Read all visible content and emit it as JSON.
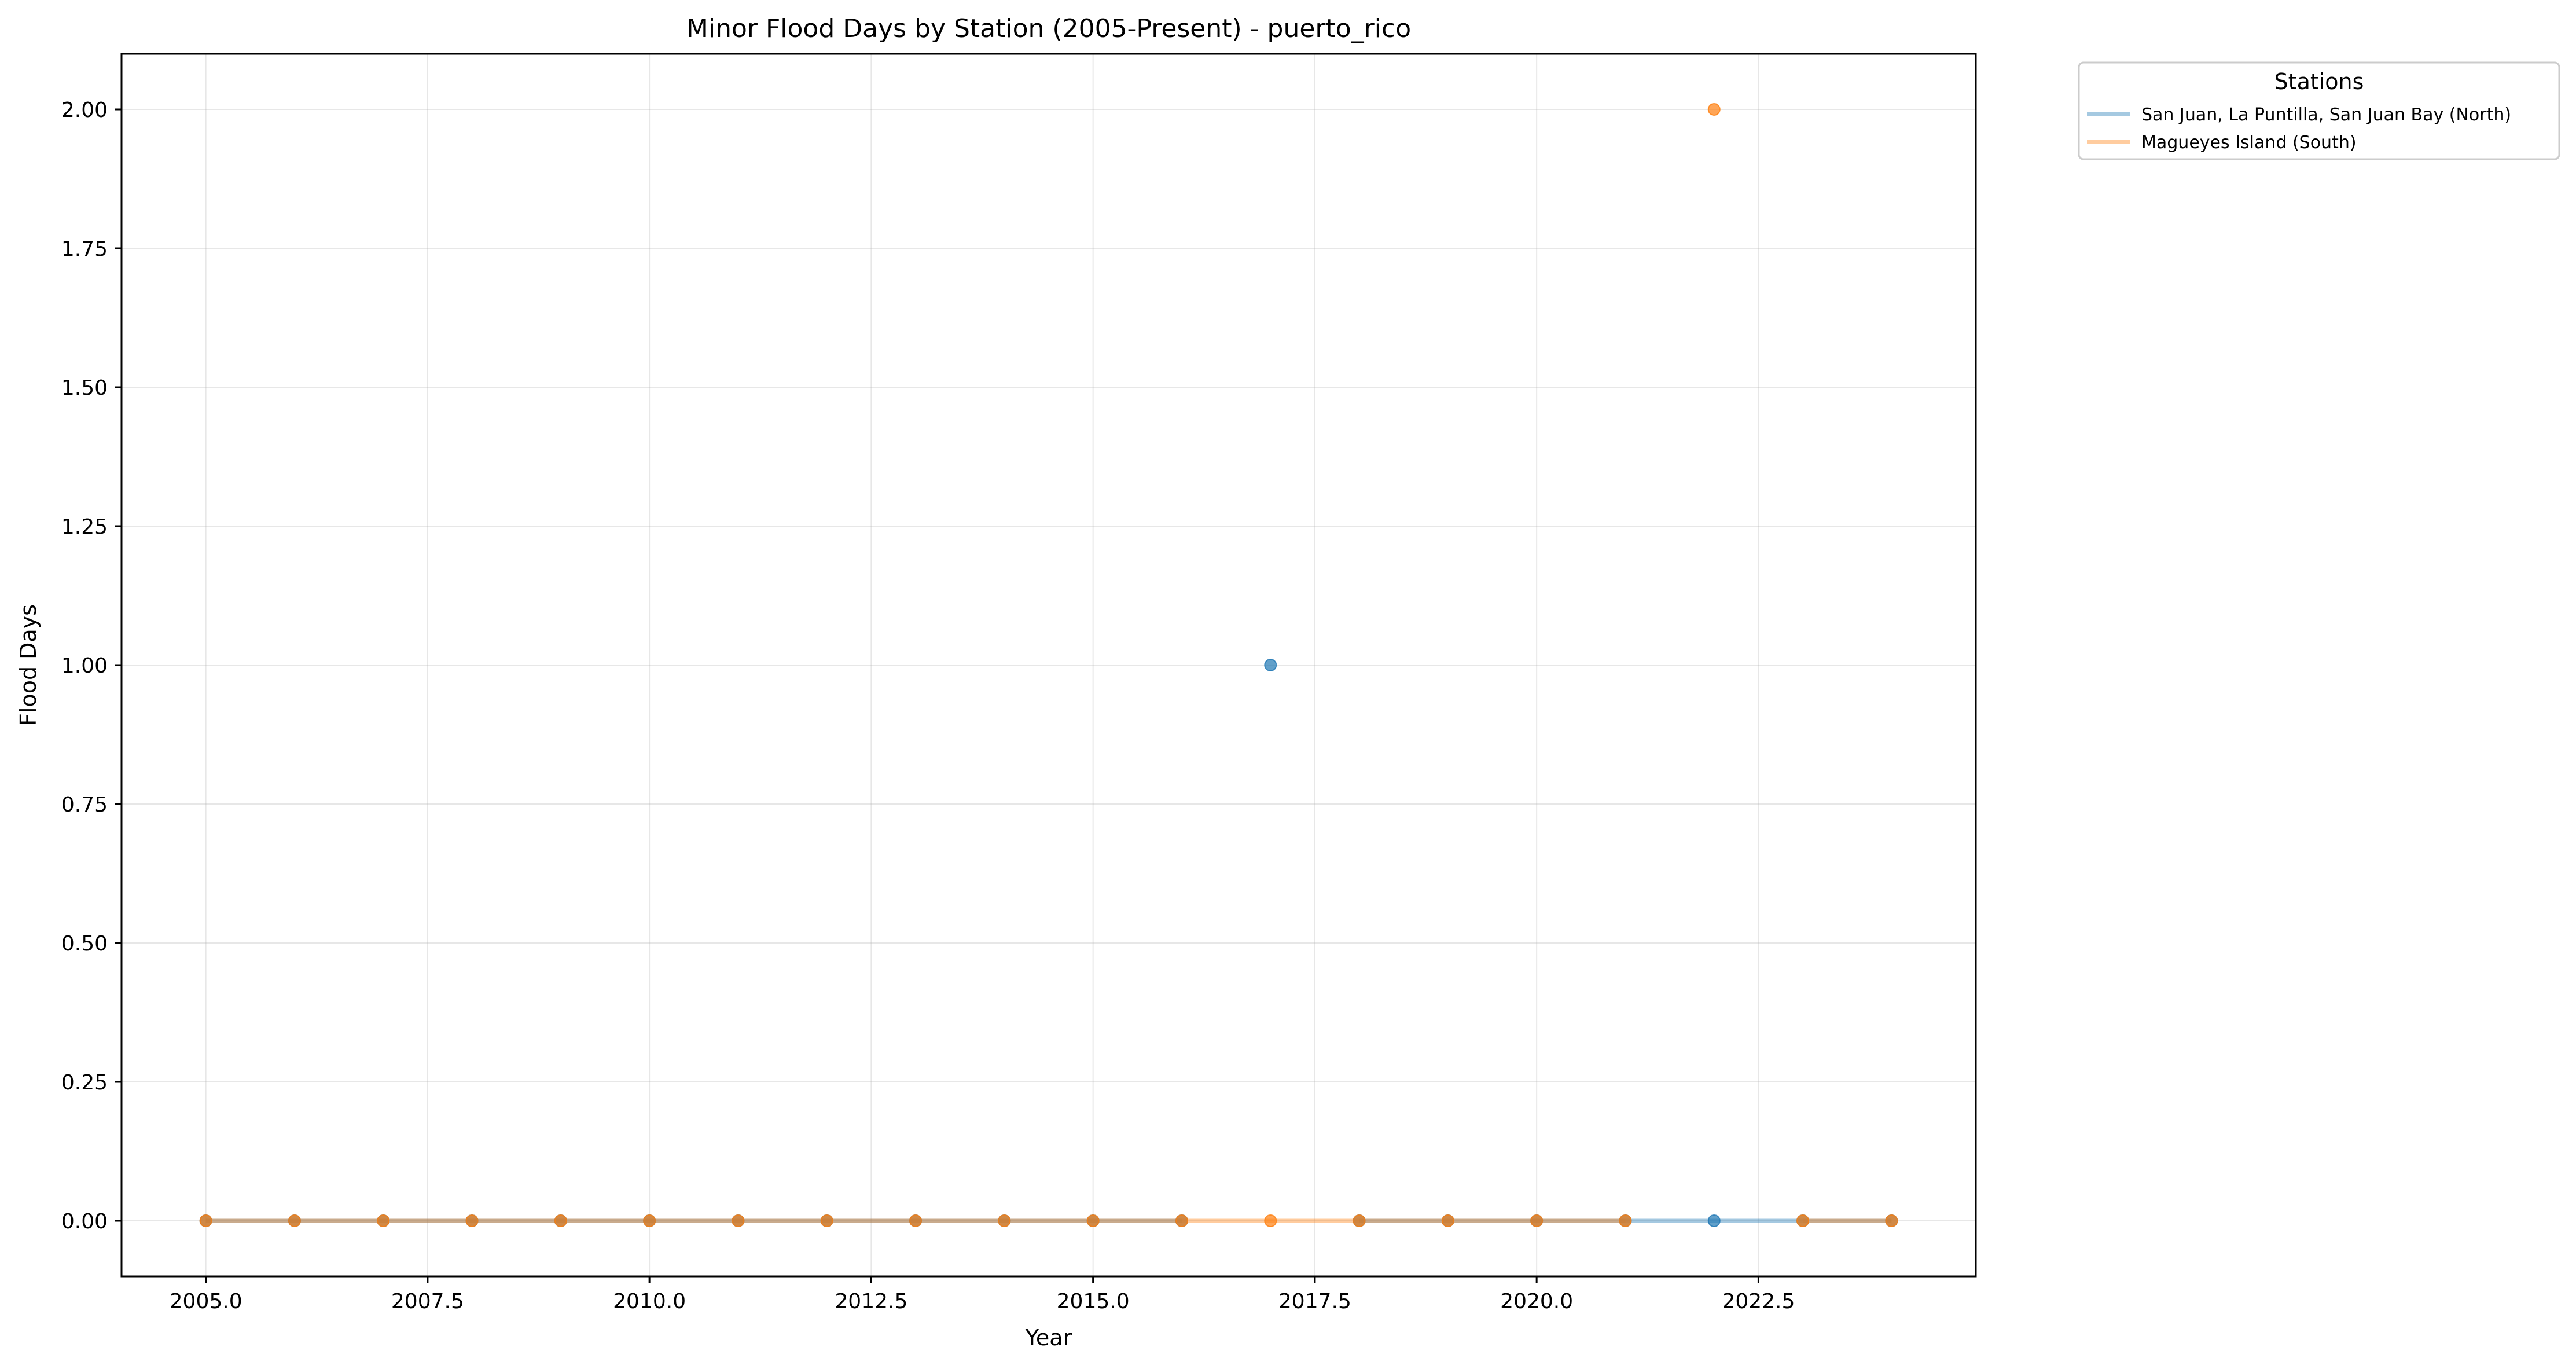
{
  "chart_data": {
    "type": "line",
    "title": "Minor Flood Days by Station (2005-Present) - puerto_rico",
    "xlabel": "Year",
    "ylabel": "Flood Days",
    "xlim": [
      2004.05,
      2024.95
    ],
    "ylim": [
      -0.1,
      2.1
    ],
    "xticks": [
      2005.0,
      2007.5,
      2010.0,
      2012.5,
      2015.0,
      2017.5,
      2020.0,
      2022.5
    ],
    "xtick_labels": [
      "2005.0",
      "2007.5",
      "2010.0",
      "2012.5",
      "2015.0",
      "2017.5",
      "2020.0",
      "2022.5"
    ],
    "yticks": [
      0.0,
      0.25,
      0.5,
      0.75,
      1.0,
      1.25,
      1.5,
      1.75,
      2.0
    ],
    "ytick_labels": [
      "0.00",
      "0.25",
      "0.50",
      "0.75",
      "1.00",
      "1.25",
      "1.50",
      "1.75",
      "2.00"
    ],
    "grid": true,
    "legend": {
      "title": "Stations",
      "placement": "outside-top-right"
    },
    "x": [
      2005,
      2006,
      2007,
      2008,
      2009,
      2010,
      2011,
      2012,
      2013,
      2014,
      2015,
      2016,
      2017,
      2018,
      2019,
      2020,
      2021,
      2022,
      2023,
      2024
    ],
    "series": [
      {
        "name": "San Juan, La Puntilla, San Juan Bay (North)",
        "color": "#1f77b4",
        "values": [
          0,
          0,
          0,
          0,
          0,
          0,
          0,
          0,
          0,
          0,
          0,
          0,
          1,
          0,
          0,
          0,
          0,
          0,
          0,
          0
        ]
      },
      {
        "name": "Magueyes Island (South)",
        "color": "#ff7f0e",
        "values": [
          0,
          0,
          0,
          0,
          0,
          0,
          0,
          0,
          0,
          0,
          0,
          0,
          0,
          0,
          0,
          0,
          0,
          2,
          0,
          0
        ]
      }
    ]
  }
}
